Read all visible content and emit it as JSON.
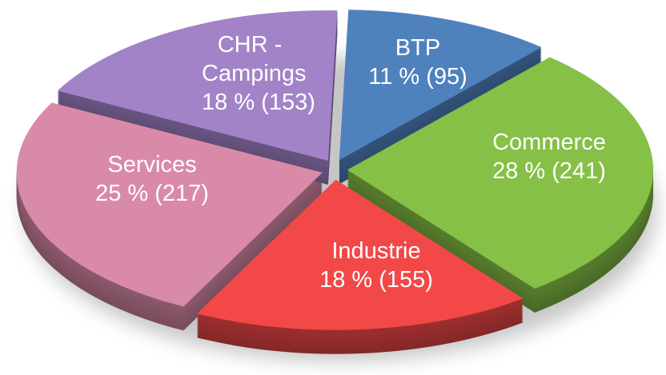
{
  "chart_data": {
    "type": "pie",
    "categories": [
      "BTP",
      "Commerce",
      "Industrie",
      "Services",
      "CHR - Campings"
    ],
    "values": [
      95,
      241,
      155,
      217,
      153
    ],
    "value_labels": [
      "11 % (95)",
      "28 % (241)",
      "18 % (155)",
      "25 % (217)",
      "18 % (153)"
    ],
    "colors": [
      "#4f81bd",
      "#86c046",
      "#f24848",
      "#d98aa8",
      "#a283c8"
    ]
  }
}
